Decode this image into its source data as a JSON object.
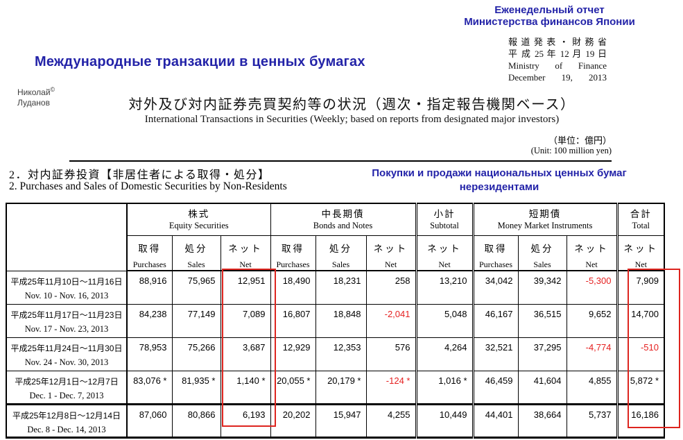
{
  "colors": {
    "accent_blue": "#2323a8",
    "negative_red": "#e51f1f",
    "highlight_box_red": "#dd241e"
  },
  "header": {
    "report_label": [
      "Еженедельный отчет",
      "Министерства финансов Японии"
    ],
    "mof_block": [
      "報 道 発 表 ・ 財 務 省",
      "平 成 25 年 12 月 19 日",
      "Ministry of Finance",
      "December 19, 2013"
    ],
    "ru_title": "Международные транзакции в ценных бумагах",
    "watermark": {
      "name": "Николай",
      "copyright": "©",
      "surname": "Луданов"
    },
    "jp_title": "対外及び対内証券売買契約等の状況（週次・指定報告機関ベース）",
    "en_subtitle": "International Transactions in Securities (Weekly; based on reports from designated major investors)",
    "unit_jp": "（単位：億円）",
    "unit_en": "(Unit: 100 million yen)"
  },
  "section": {
    "jp": "2．対内証券投資【非居住者による取得・処分】",
    "en": "2. Purchases and Sales of Domestic Securities by Non-Residents",
    "ru_note": [
      "Покупки и продажи национальных ценных бумаг",
      "нерезидентами"
    ]
  },
  "table": {
    "groups": [
      {
        "jp": "株式",
        "en": "Equity Securities",
        "cols": [
          {
            "jp": "取得",
            "en": "Purchases"
          },
          {
            "jp": "処分",
            "en": "Sales"
          },
          {
            "jp": "ネット",
            "en": "Net"
          }
        ]
      },
      {
        "jp": "中長期債",
        "en": "Bonds and Notes",
        "cols": [
          {
            "jp": "取得",
            "en": "Purchases"
          },
          {
            "jp": "処分",
            "en": "Sales"
          },
          {
            "jp": "ネット",
            "en": "Net"
          }
        ]
      },
      {
        "jp": "小計",
        "en": "Subtotal",
        "cols": [
          {
            "jp": "ネット",
            "en": "Net"
          }
        ]
      },
      {
        "jp": "短期債",
        "en": "Money Market Instruments",
        "cols": [
          {
            "jp": "取得",
            "en": "Purchases"
          },
          {
            "jp": "処分",
            "en": "Sales"
          },
          {
            "jp": "ネット",
            "en": "Net"
          }
        ]
      },
      {
        "jp": "合計",
        "en": "Total",
        "cols": [
          {
            "jp": "ネット",
            "en": "Net"
          }
        ]
      }
    ],
    "rows": [
      {
        "date_jp": "平成25年11月10日～11月16日",
        "date_en": "Nov. 10 - Nov. 16, 2013",
        "values": [
          "88,916",
          "75,965",
          "12,951",
          "18,490",
          "18,231",
          "258",
          "13,210",
          "34,042",
          "39,342",
          "-5,300",
          "7,909"
        ]
      },
      {
        "date_jp": "平成25年11月17日～11月23日",
        "date_en": "Nov. 17 - Nov. 23, 2013",
        "values": [
          "84,238",
          "77,149",
          "7,089",
          "16,807",
          "18,848",
          "-2,041",
          "5,048",
          "46,167",
          "36,515",
          "9,652",
          "14,700"
        ]
      },
      {
        "date_jp": "平成25年11月24日～11月30日",
        "date_en": "Nov. 24 - Nov. 30, 2013",
        "values": [
          "78,953",
          "75,266",
          "3,687",
          "12,929",
          "12,353",
          "576",
          "4,264",
          "32,521",
          "37,295",
          "-4,774",
          "-510"
        ]
      },
      {
        "date_jp": "平成25年12月1日～12月7日",
        "date_en": "Dec. 1 - Dec. 7, 2013",
        "values": [
          "83,076 *",
          "81,935 *",
          "1,140 *",
          "20,055 *",
          "20,179 *",
          "-124 *",
          "1,016 *",
          "46,459",
          "41,604",
          "4,855",
          "5,872 *"
        ]
      },
      {
        "date_jp": "平成25年12月8日～12月14日",
        "date_en": "Dec. 8 - Dec. 14, 2013",
        "values": [
          "87,060",
          "80,866",
          "6,193",
          "20,202",
          "15,947",
          "4,255",
          "10,449",
          "44,401",
          "38,664",
          "5,737",
          "16,186"
        ]
      }
    ]
  }
}
